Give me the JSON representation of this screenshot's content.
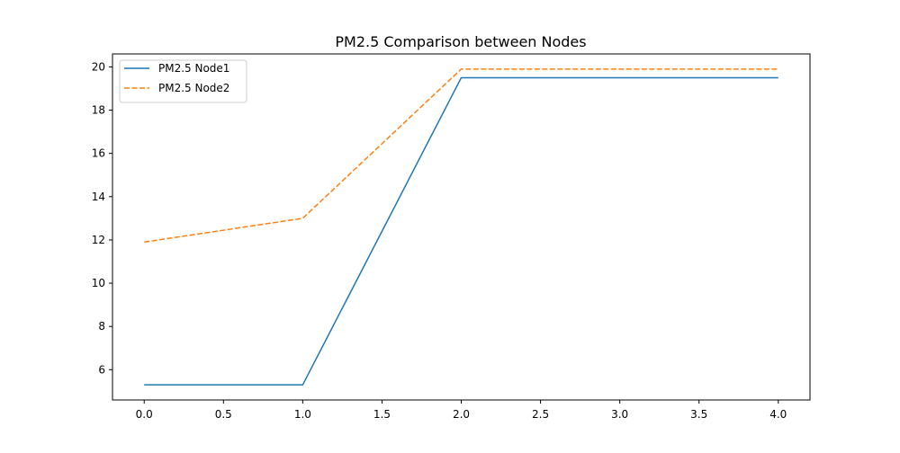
{
  "chart_data": {
    "type": "line",
    "title": "PM2.5 Comparison between Nodes",
    "xlabel": "",
    "ylabel": "",
    "x": [
      0,
      1,
      2,
      3,
      4
    ],
    "xlim": [
      -0.2,
      4.2
    ],
    "ylim": [
      4.6,
      20.6
    ],
    "x_ticks": [
      0.0,
      0.5,
      1.0,
      1.5,
      2.0,
      2.5,
      3.0,
      3.5,
      4.0
    ],
    "x_tick_labels": [
      "0.0",
      "0.5",
      "1.0",
      "1.5",
      "2.0",
      "2.5",
      "3.0",
      "3.5",
      "4.0"
    ],
    "y_ticks": [
      6,
      8,
      10,
      12,
      14,
      16,
      18,
      20
    ],
    "y_tick_labels": [
      "6",
      "8",
      "10",
      "12",
      "14",
      "16",
      "18",
      "20"
    ],
    "grid": false,
    "legend_position": "top-left",
    "series": [
      {
        "name": "PM2.5 Node1",
        "values": [
          5.3,
          5.3,
          19.5,
          19.5,
          19.5
        ],
        "color": "#1f77b4",
        "line_style": "solid"
      },
      {
        "name": "PM2.5 Node2",
        "values": [
          11.9,
          13.0,
          19.9,
          19.9,
          19.9
        ],
        "color": "#ff7f0e",
        "line_style": "dashed"
      }
    ]
  }
}
